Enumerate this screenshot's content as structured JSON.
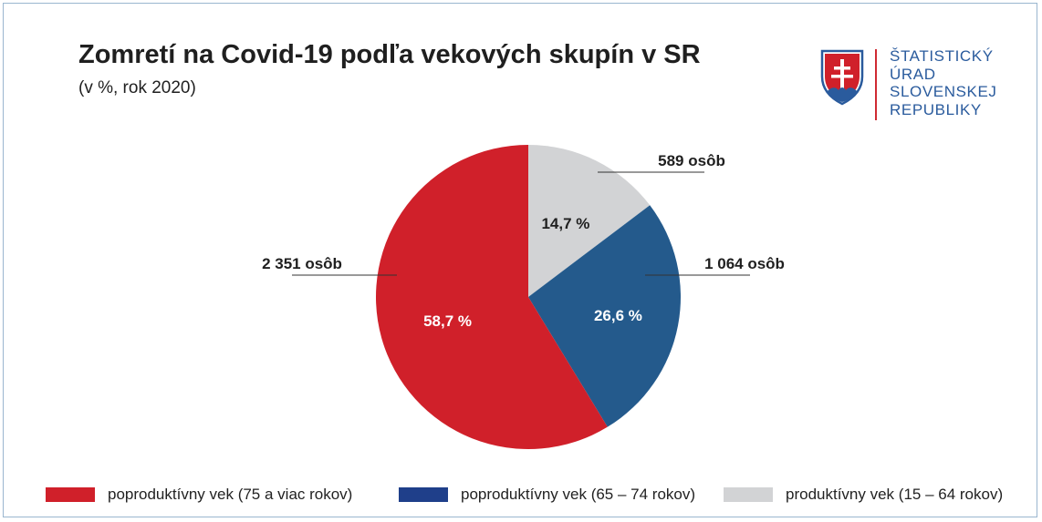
{
  "colors": {
    "red": "#d0202a",
    "blue": "#245a8c",
    "grey": "#d2d3d5",
    "legend_blue": "#1f3f8a"
  },
  "logo": {
    "icon": "slovak-coat-of-arms-icon",
    "lines": [
      "ŠTATISTICKÝ",
      "ÚRAD",
      "SLOVENSKEJ",
      "REPUBLIKY"
    ]
  },
  "chart_data": {
    "type": "pie",
    "title": "Zomretí na Covid-19 podľa vekových skupín v SR",
    "subtitle": "(v %, rok 2020)",
    "slices": [
      {
        "name": "produktívny vek (15 – 64 rokov)",
        "percent": 14.7,
        "percent_label": "14,7 %",
        "count_label": "589 osôb",
        "color": "#d2d3d5",
        "legend_color": "#d2d3d5",
        "text_color": "#1f1f1f"
      },
      {
        "name": "poproduktívny vek (65 – 74 rokov)",
        "percent": 26.6,
        "percent_label": "26,6 %",
        "count_label": "1 064 osôb",
        "color": "#245a8c",
        "legend_color": "#1f3f8a",
        "text_color": "#ffffff"
      },
      {
        "name": "poproduktívny vek (75 a viac rokov)",
        "percent": 58.7,
        "percent_label": "58,7 %",
        "count_label": "2 351 osôb",
        "color": "#d0202a",
        "legend_color": "#d0202a",
        "text_color": "#ffffff"
      }
    ],
    "legend_order": [
      2,
      1,
      0
    ],
    "legend_position": "bottom"
  }
}
